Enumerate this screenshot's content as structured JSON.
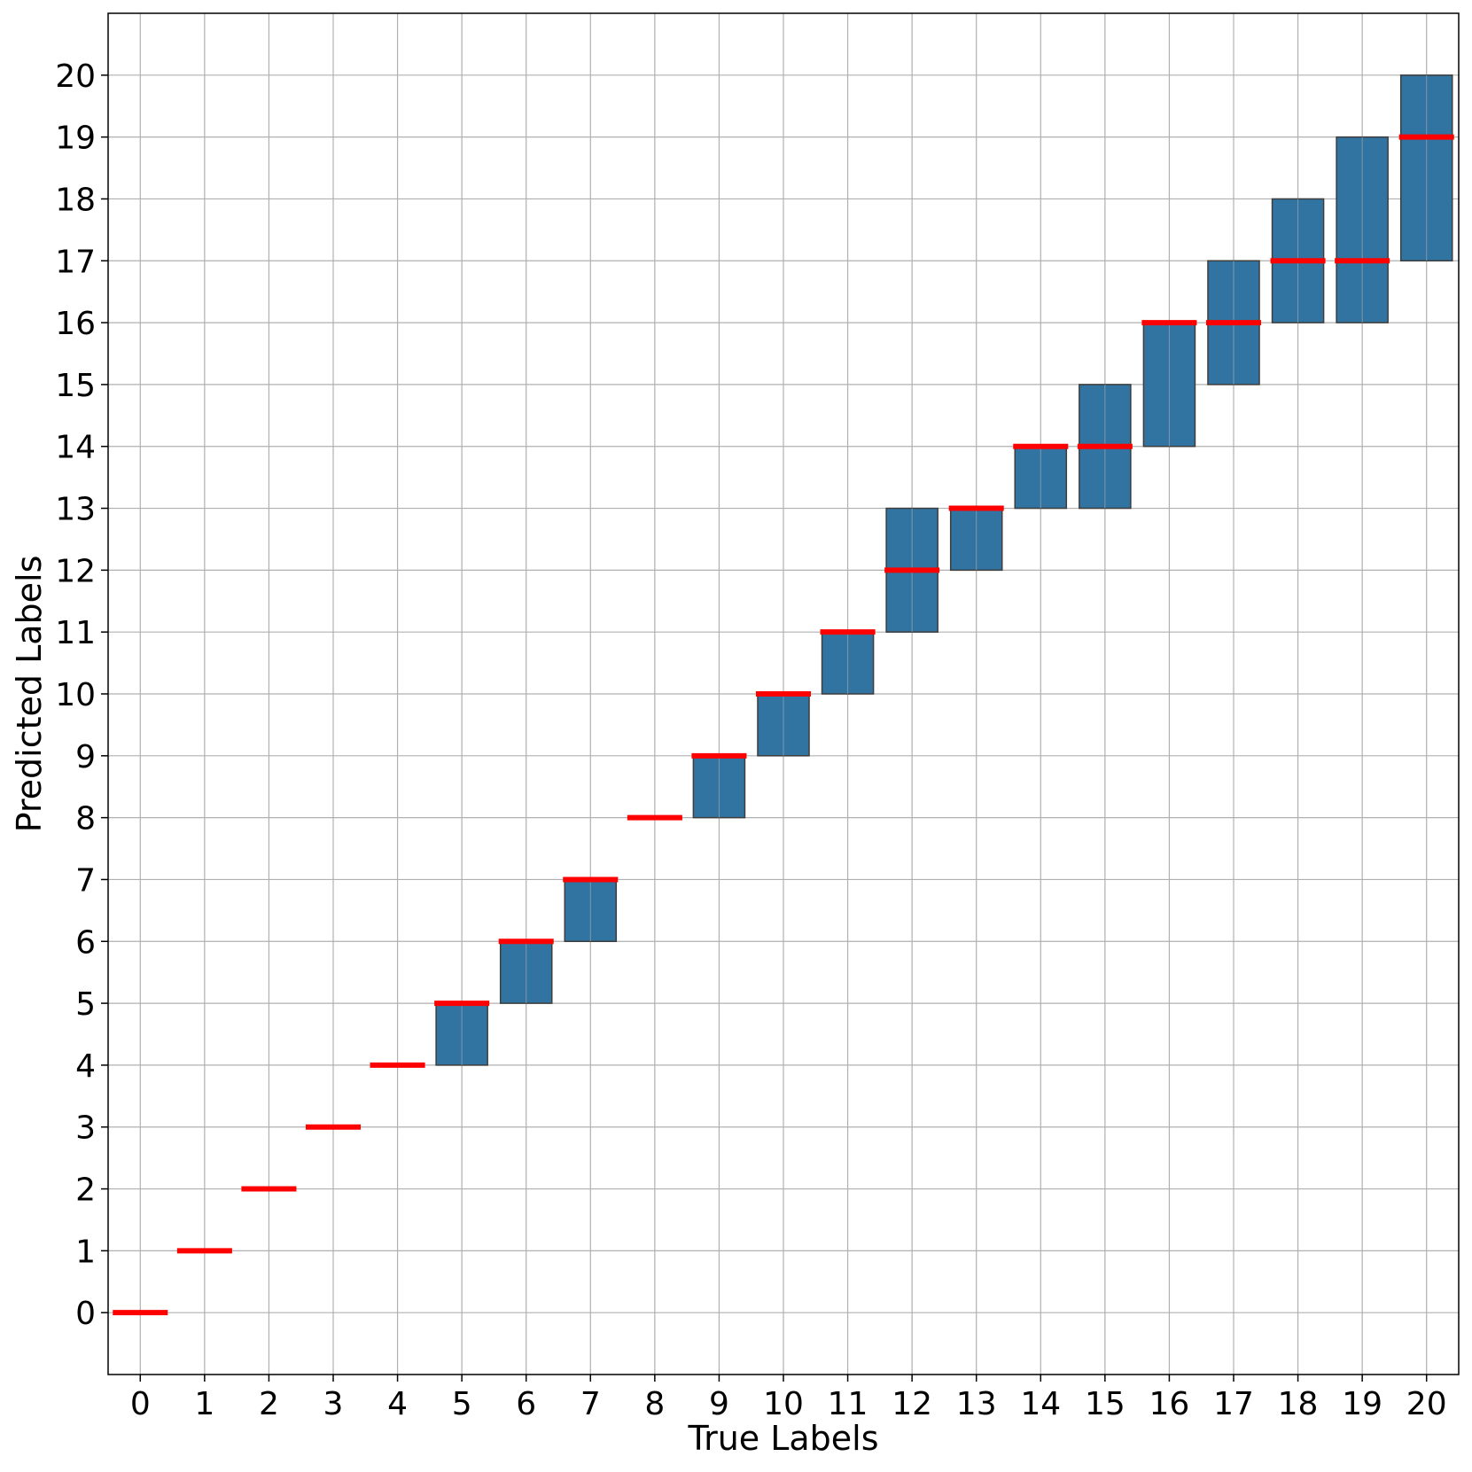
{
  "chart_data": {
    "type": "box",
    "xlabel": "True Labels",
    "ylabel": "Predicted Labels",
    "categories": [
      "0",
      "1",
      "2",
      "3",
      "4",
      "5",
      "6",
      "7",
      "8",
      "9",
      "10",
      "11",
      "12",
      "13",
      "14",
      "15",
      "16",
      "17",
      "18",
      "19",
      "20"
    ],
    "y_ticks": [
      "0",
      "1",
      "2",
      "3",
      "4",
      "5",
      "6",
      "7",
      "8",
      "9",
      "10",
      "11",
      "12",
      "13",
      "14",
      "15",
      "16",
      "17",
      "18",
      "19",
      "20"
    ],
    "xlim": [
      -0.5,
      20.5
    ],
    "ylim": [
      -1,
      21
    ],
    "grid": true,
    "boxes": [
      {
        "x": 0,
        "q1": 0,
        "q3": 0,
        "median": 0
      },
      {
        "x": 1,
        "q1": 1,
        "q3": 1,
        "median": 1
      },
      {
        "x": 2,
        "q1": 2,
        "q3": 2,
        "median": 2
      },
      {
        "x": 3,
        "q1": 3,
        "q3": 3,
        "median": 3
      },
      {
        "x": 4,
        "q1": 4,
        "q3": 4,
        "median": 4
      },
      {
        "x": 5,
        "q1": 4,
        "q3": 5,
        "median": 5
      },
      {
        "x": 6,
        "q1": 5,
        "q3": 6,
        "median": 6
      },
      {
        "x": 7,
        "q1": 6,
        "q3": 7,
        "median": 7
      },
      {
        "x": 8,
        "q1": 8,
        "q3": 8,
        "median": 8
      },
      {
        "x": 9,
        "q1": 8,
        "q3": 9,
        "median": 9
      },
      {
        "x": 10,
        "q1": 9,
        "q3": 10,
        "median": 10
      },
      {
        "x": 11,
        "q1": 10,
        "q3": 11,
        "median": 11
      },
      {
        "x": 12,
        "q1": 11,
        "q3": 13,
        "median": 12
      },
      {
        "x": 13,
        "q1": 12,
        "q3": 13,
        "median": 13
      },
      {
        "x": 14,
        "q1": 13,
        "q3": 14,
        "median": 14
      },
      {
        "x": 15,
        "q1": 13,
        "q3": 15,
        "median": 14
      },
      {
        "x": 16,
        "q1": 14,
        "q3": 16,
        "median": 16
      },
      {
        "x": 17,
        "q1": 15,
        "q3": 17,
        "median": 16
      },
      {
        "x": 18,
        "q1": 16,
        "q3": 18,
        "median": 17
      },
      {
        "x": 19,
        "q1": 16,
        "q3": 19,
        "median": 17
      },
      {
        "x": 20,
        "q1": 17,
        "q3": 20,
        "median": 19
      }
    ],
    "colors": {
      "box_fill": "#3274a1",
      "box_edge": "#3d3d3d",
      "median": "#ff0000",
      "grid": "#b0b0b0",
      "axes": "#000000"
    }
  }
}
